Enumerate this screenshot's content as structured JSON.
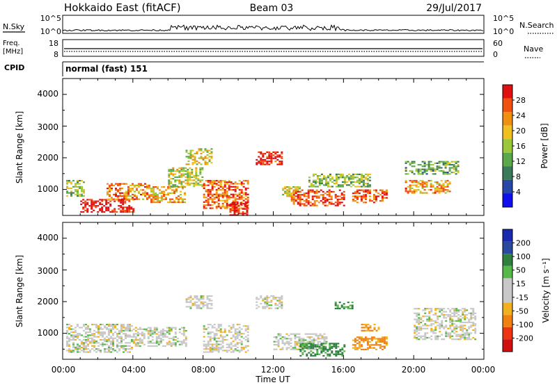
{
  "header": {
    "station": "Hokkaido East (fitACF)",
    "beam": "Beam 03",
    "date": "29/Jul/2017"
  },
  "strips": {
    "nsky": {
      "label": "N.Sky",
      "ticks": [
        "10^5",
        "10^0"
      ]
    },
    "nsearch": {
      "label": "N.Search",
      "ticks": [
        "10^5",
        "10^0"
      ]
    },
    "freq": {
      "label_line1": "Freq.",
      "label_line2": "[MHz]",
      "ticks": [
        "18",
        "8"
      ]
    },
    "nave": {
      "label": "Nave",
      "ticks": [
        "60",
        "0"
      ]
    },
    "cpid": {
      "label": "CPID",
      "value": "normal (fast) 151"
    }
  },
  "axes": {
    "xlabel": "Time UT",
    "xticks": [
      "00:00",
      "04:00",
      "08:00",
      "12:00",
      "16:00",
      "20:00",
      "00:00"
    ],
    "ylabel": "Slant Range [km]",
    "yticks": [
      "4000",
      "3000",
      "2000",
      "1000"
    ]
  },
  "colorbars": {
    "power": {
      "label": "Power [dB]",
      "ticks": [
        "28",
        "24",
        "20",
        "16",
        "12",
        "8",
        "4"
      ]
    },
    "velocity": {
      "label": "Velocity [m s⁻¹]",
      "ticks": [
        "200",
        "100",
        "50",
        "15",
        "-15",
        "-50",
        "-100",
        "-200"
      ]
    }
  },
  "colors": {
    "power_scale": [
      "#1010ee",
      "#2848a8",
      "#3a7a5a",
      "#5aa84a",
      "#9bc83a",
      "#f0c020",
      "#f09010",
      "#f05010",
      "#e01010"
    ],
    "velocity_scale": [
      "#1a2ab0",
      "#2a4aa0",
      "#2f7f3f",
      "#55b848",
      "#c8c8c8",
      "#c8c8c8",
      "#f0b020",
      "#f08010",
      "#ee3310",
      "#d01010"
    ]
  },
  "chart_data": [
    {
      "type": "heatmap",
      "panel": "power",
      "xlabel": "Time UT",
      "ylabel": "Slant Range [km]",
      "xlim": [
        "00:00",
        "24:00"
      ],
      "ylim": [
        180,
        4500
      ],
      "colorbar_label": "Power [dB]",
      "colorbar_range": [
        0,
        30
      ],
      "regions": [
        {
          "t": [
            0.2,
            1.2
          ],
          "r": [
            800,
            1300
          ],
          "value": 14
        },
        {
          "t": [
            1.0,
            4.0
          ],
          "r": [
            300,
            700
          ],
          "value": 29
        },
        {
          "t": [
            2.5,
            5.0
          ],
          "r": [
            700,
            1200
          ],
          "value": 22
        },
        {
          "t": [
            5.0,
            7.0
          ],
          "r": [
            600,
            1100
          ],
          "value": 20
        },
        {
          "t": [
            6.0,
            8.0
          ],
          "r": [
            1100,
            1700
          ],
          "value": 16
        },
        {
          "t": [
            7.0,
            8.5
          ],
          "r": [
            1800,
            2300
          ],
          "value": 17
        },
        {
          "t": [
            8.0,
            10.5
          ],
          "r": [
            400,
            1300
          ],
          "value": 24
        },
        {
          "t": [
            9.5,
            10.5
          ],
          "r": [
            200,
            600
          ],
          "value": 29
        },
        {
          "t": [
            11.0,
            12.5
          ],
          "r": [
            1800,
            2200
          ],
          "value": 29
        },
        {
          "t": [
            12.5,
            13.5
          ],
          "r": [
            800,
            1100
          ],
          "value": 17
        },
        {
          "t": [
            13.0,
            16.0
          ],
          "r": [
            500,
            1000
          ],
          "value": 26
        },
        {
          "t": [
            14.0,
            17.5
          ],
          "r": [
            1100,
            1500
          ],
          "value": 14
        },
        {
          "t": [
            16.5,
            18.5
          ],
          "r": [
            600,
            1000
          ],
          "value": 26
        },
        {
          "t": [
            19.5,
            22.0
          ],
          "r": [
            900,
            1300
          ],
          "value": 21
        },
        {
          "t": [
            19.5,
            22.5
          ],
          "r": [
            1500,
            1900
          ],
          "value": 12
        }
      ]
    },
    {
      "type": "heatmap",
      "panel": "velocity",
      "xlabel": "Time UT",
      "ylabel": "Slant Range [km]",
      "xlim": [
        "00:00",
        "24:00"
      ],
      "ylim": [
        180,
        4500
      ],
      "colorbar_label": "Velocity [m s⁻¹]",
      "colorbar_range": [
        -250,
        250
      ],
      "regions": [
        {
          "t": [
            0.2,
            4.0
          ],
          "r": [
            400,
            1300
          ],
          "value": 0
        },
        {
          "t": [
            4.0,
            7.0
          ],
          "r": [
            600,
            1200
          ],
          "value": 0
        },
        {
          "t": [
            7.0,
            8.5
          ],
          "r": [
            1800,
            2200
          ],
          "value": 0
        },
        {
          "t": [
            8.0,
            10.5
          ],
          "r": [
            400,
            1300
          ],
          "value": 0
        },
        {
          "t": [
            11.0,
            12.5
          ],
          "r": [
            1800,
            2200
          ],
          "value": 0
        },
        {
          "t": [
            12.0,
            15.0
          ],
          "r": [
            500,
            1000
          ],
          "value": 0
        },
        {
          "t": [
            13.5,
            16.0
          ],
          "r": [
            300,
            700
          ],
          "value": 40
        },
        {
          "t": [
            15.5,
            16.5
          ],
          "r": [
            1800,
            2000
          ],
          "value": 40
        },
        {
          "t": [
            16.5,
            18.5
          ],
          "r": [
            500,
            900
          ],
          "value": -40
        },
        {
          "t": [
            17.0,
            18.0
          ],
          "r": [
            1100,
            1300
          ],
          "value": -35
        },
        {
          "t": [
            20.0,
            23.5
          ],
          "r": [
            800,
            1800
          ],
          "value": 0
        }
      ]
    }
  ]
}
